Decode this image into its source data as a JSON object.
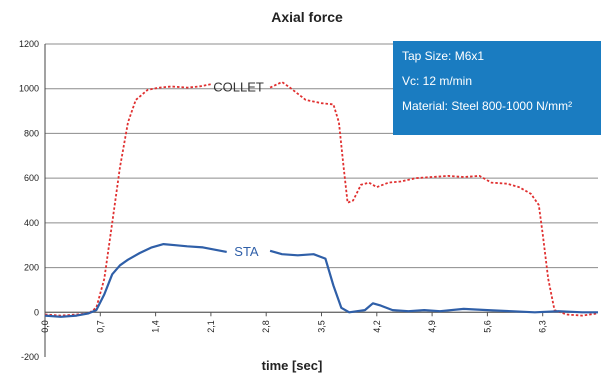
{
  "chart_data": {
    "type": "line",
    "title": "Axial force",
    "xlabel": "time [sec]",
    "ylabel": "",
    "ylim": [
      -200,
      1200
    ],
    "xlim": [
      0,
      7.0
    ],
    "yticks": [
      -200,
      0,
      200,
      400,
      600,
      800,
      1000,
      1200
    ],
    "xtick_labels": [
      "0,0",
      "0,7",
      "1,4",
      "2,1",
      "2,8",
      "3,5",
      "4,2",
      "4,9",
      "5,6",
      "6,3"
    ],
    "xtick_values": [
      0,
      0.7,
      1.4,
      2.1,
      2.8,
      3.5,
      4.2,
      4.9,
      5.6,
      6.3
    ],
    "grid": true,
    "series": [
      {
        "name": "COLLET",
        "color": "#e03030",
        "style": "dotted",
        "points": [
          [
            0.0,
            -10
          ],
          [
            0.2,
            -15
          ],
          [
            0.4,
            -10
          ],
          [
            0.55,
            -5
          ],
          [
            0.65,
            20
          ],
          [
            0.75,
            150
          ],
          [
            0.85,
            400
          ],
          [
            0.95,
            650
          ],
          [
            1.05,
            850
          ],
          [
            1.15,
            950
          ],
          [
            1.3,
            995
          ],
          [
            1.45,
            1005
          ],
          [
            1.6,
            1010
          ],
          [
            1.8,
            1005
          ],
          [
            1.95,
            1010
          ],
          [
            2.1,
            1020
          ],
          [
            2.85,
            1005
          ],
          [
            3.0,
            1030
          ],
          [
            3.1,
            1005
          ],
          [
            3.3,
            950
          ],
          [
            3.5,
            935
          ],
          [
            3.65,
            930
          ],
          [
            3.72,
            850
          ],
          [
            3.78,
            650
          ],
          [
            3.83,
            490
          ],
          [
            3.9,
            500
          ],
          [
            4.0,
            570
          ],
          [
            4.1,
            580
          ],
          [
            4.2,
            560
          ],
          [
            4.35,
            580
          ],
          [
            4.5,
            585
          ],
          [
            4.7,
            600
          ],
          [
            4.9,
            605
          ],
          [
            5.1,
            610
          ],
          [
            5.3,
            605
          ],
          [
            5.5,
            610
          ],
          [
            5.65,
            580
          ],
          [
            5.85,
            575
          ],
          [
            6.0,
            560
          ],
          [
            6.15,
            530
          ],
          [
            6.25,
            480
          ],
          [
            6.3,
            350
          ],
          [
            6.37,
            150
          ],
          [
            6.45,
            10
          ],
          [
            6.6,
            -10
          ],
          [
            6.8,
            -15
          ],
          [
            7.0,
            -5
          ]
        ]
      },
      {
        "name": "STA",
        "color": "#2f5fa8",
        "style": "solid",
        "points": [
          [
            0.0,
            -15
          ],
          [
            0.2,
            -20
          ],
          [
            0.4,
            -15
          ],
          [
            0.55,
            -5
          ],
          [
            0.65,
            10
          ],
          [
            0.75,
            80
          ],
          [
            0.85,
            170
          ],
          [
            0.95,
            210
          ],
          [
            1.05,
            235
          ],
          [
            1.2,
            265
          ],
          [
            1.35,
            290
          ],
          [
            1.5,
            305
          ],
          [
            1.65,
            300
          ],
          [
            1.8,
            295
          ],
          [
            2.0,
            290
          ],
          [
            2.15,
            280
          ],
          [
            2.3,
            270
          ],
          [
            2.85,
            275
          ],
          [
            3.0,
            260
          ],
          [
            3.2,
            255
          ],
          [
            3.4,
            260
          ],
          [
            3.55,
            240
          ],
          [
            3.65,
            120
          ],
          [
            3.75,
            20
          ],
          [
            3.85,
            0
          ],
          [
            3.95,
            5
          ],
          [
            4.05,
            10
          ],
          [
            4.15,
            40
          ],
          [
            4.25,
            30
          ],
          [
            4.4,
            10
          ],
          [
            4.6,
            5
          ],
          [
            4.8,
            10
          ],
          [
            5.0,
            5
          ],
          [
            5.3,
            15
          ],
          [
            5.6,
            10
          ],
          [
            5.9,
            5
          ],
          [
            6.2,
            0
          ],
          [
            6.5,
            5
          ],
          [
            6.8,
            0
          ],
          [
            7.0,
            0
          ]
        ]
      }
    ],
    "annotations": [
      {
        "text": "COLLET",
        "x": 2.45,
        "y": 1005,
        "color": "#333333"
      },
      {
        "text": "STA",
        "x": 2.55,
        "y": 270,
        "color": "#2f5fa8"
      }
    ]
  },
  "infobox": {
    "tap_size": "Tap Size: M6x1",
    "vc": "Vc: 12 m/min",
    "material": "Material: Steel 800-1000 N/mm²"
  }
}
